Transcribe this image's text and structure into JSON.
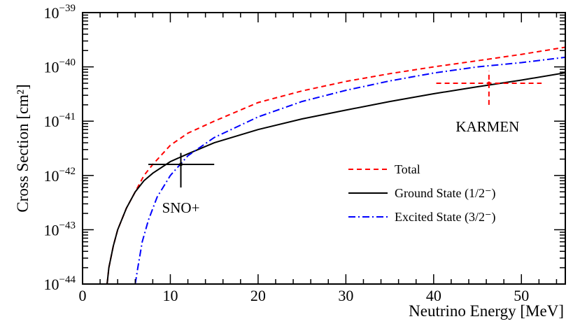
{
  "chart_data": {
    "type": "line",
    "xlabel": "Neutrino Energy [MeV]",
    "ylabel": "Cross Section [cm²]",
    "xlim": [
      0,
      55
    ],
    "ylim": [
      1e-44,
      1e-39
    ],
    "yscale": "log",
    "grid": false,
    "legend_position": "center-right",
    "x_ticks": [
      0,
      10,
      20,
      30,
      40,
      50
    ],
    "y_ticks": [
      {
        "value": 1e-44,
        "base": "10",
        "exp": "−44"
      },
      {
        "value": 1e-43,
        "base": "10",
        "exp": "−43"
      },
      {
        "value": 1e-42,
        "base": "10",
        "exp": "−42"
      },
      {
        "value": 1e-41,
        "base": "10",
        "exp": "−41"
      },
      {
        "value": 1e-40,
        "base": "10",
        "exp": "−40"
      },
      {
        "value": 1e-39,
        "base": "10",
        "exp": "−39"
      }
    ],
    "series": [
      {
        "name": "Total",
        "color": "#ff0000",
        "style": "dashed",
        "x": [
          2.8,
          3,
          3.5,
          4,
          5,
          6,
          7,
          8,
          10,
          12,
          15,
          20,
          25,
          30,
          35,
          40,
          45,
          50,
          55
        ],
        "y": [
          1e-44,
          2e-44,
          5e-44,
          1e-43,
          2.5e-43,
          5e-43,
          1e-42,
          1.6e-42,
          3.6e-42,
          6e-42,
          1e-41,
          2.2e-41,
          3.6e-41,
          5.4e-41,
          7.5e-41,
          1e-40,
          1.3e-40,
          1.7e-40,
          2.3e-40
        ]
      },
      {
        "name": "Ground State (1/2⁻)",
        "color": "#000000",
        "style": "solid",
        "x": [
          2.8,
          3,
          3.5,
          4,
          5,
          6,
          7,
          8,
          10,
          12,
          15,
          20,
          25,
          30,
          35,
          40,
          45,
          50,
          55
        ],
        "y": [
          1e-44,
          2e-44,
          5e-44,
          1e-43,
          2.5e-43,
          5e-43,
          8e-43,
          1.1e-42,
          1.8e-42,
          2.5e-42,
          4e-42,
          7e-42,
          1.1e-41,
          1.6e-41,
          2.3e-41,
          3.2e-41,
          4.3e-41,
          5.7e-41,
          7.8e-41
        ]
      },
      {
        "name": "Excited State (3/2⁻)",
        "color": "#0000ff",
        "style": "dashdot",
        "x": [
          6,
          6.3,
          6.8,
          7.5,
          8.5,
          10,
          12,
          15,
          20,
          25,
          30,
          35,
          40,
          45,
          50,
          55
        ],
        "y": [
          1e-44,
          2e-44,
          6e-44,
          1.5e-43,
          4e-43,
          1e-42,
          2.3e-42,
          5e-42,
          1.2e-41,
          2.3e-41,
          3.7e-41,
          5.5e-41,
          7.7e-41,
          1e-40,
          1.2e-40,
          1.5e-40
        ]
      }
    ],
    "annotations": [
      {
        "label": "SNO+",
        "color": "#000000",
        "style": "solid",
        "x": 11.2,
        "y": 1.6e-42,
        "x_err": [
          7.5,
          15
        ],
        "y_err": [
          6e-43,
          2.6e-42
        ]
      },
      {
        "label": "KARMEN",
        "color": "#ff0000",
        "style": "dashed",
        "x": 46.3,
        "y": 5e-41,
        "x_err": [
          40.3,
          52.3
        ],
        "y_err": [
          2e-41,
          8.4e-41
        ]
      }
    ]
  }
}
